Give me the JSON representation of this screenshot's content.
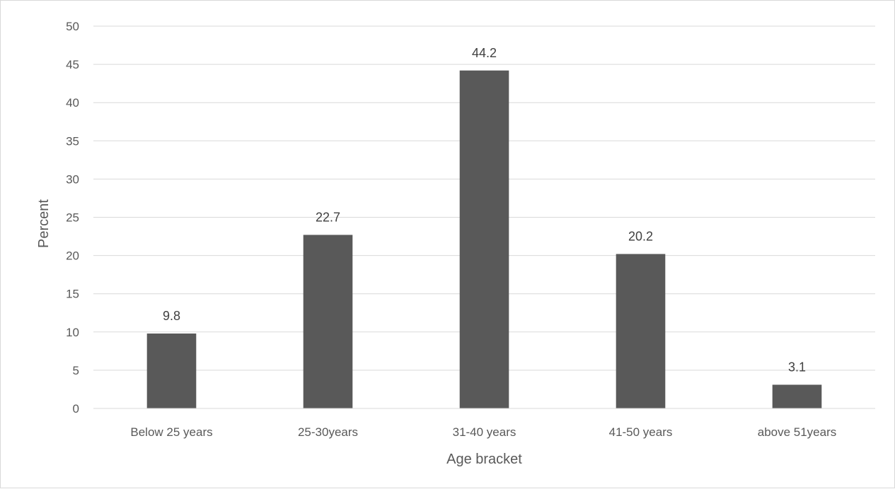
{
  "chart_data": {
    "type": "bar",
    "title": "",
    "xlabel": "Age bracket",
    "ylabel": "Percent",
    "categories": [
      "Below 25 years",
      "25-30years",
      "31-40 years",
      "41-50 years",
      "above 51years"
    ],
    "values": [
      9.8,
      22.7,
      44.2,
      20.2,
      3.1
    ],
    "data_labels": [
      "9.8",
      "22.7",
      "44.2",
      "20.2",
      "3.1"
    ],
    "ylim": [
      0,
      50
    ],
    "yticks": [
      "0",
      "5",
      "10",
      "15",
      "20",
      "25",
      "30",
      "35",
      "40",
      "45",
      "50"
    ],
    "grid": true,
    "legend": "none",
    "colors": {
      "bar": "#595959",
      "grid": "#d9d9d9",
      "text": "#595959",
      "label": "#404040"
    }
  }
}
